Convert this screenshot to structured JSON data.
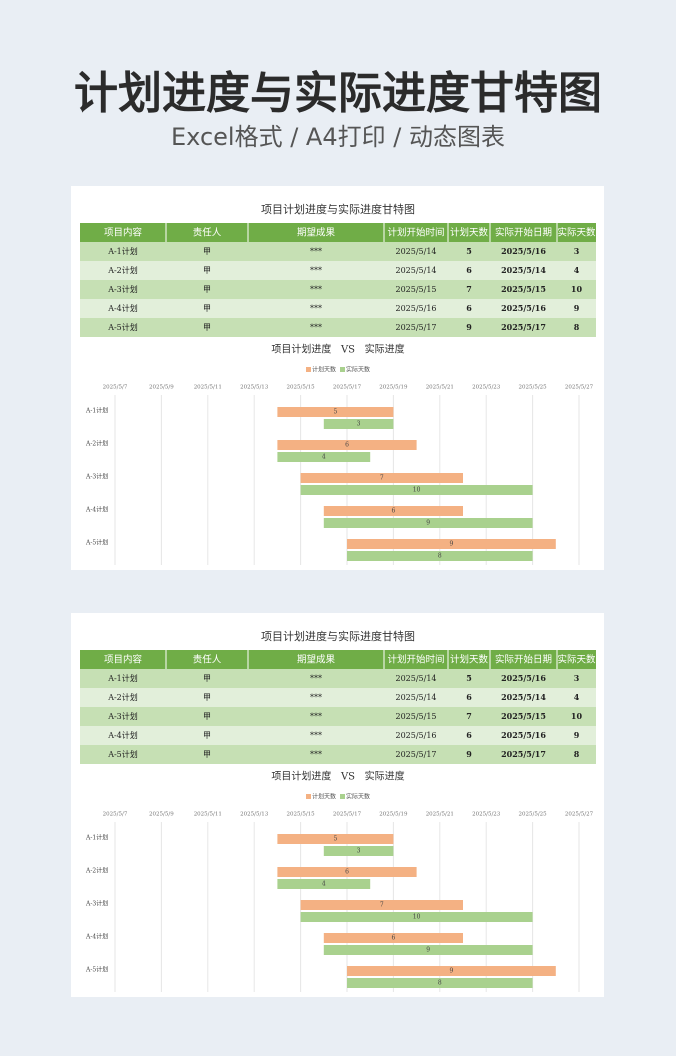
{
  "header": {
    "title": "计划进度与实际进度甘特图",
    "subtitle": "Excel格式 / A4打印 / 动态图表"
  },
  "sheets": [
    {
      "title": "项目计划进度与实际进度甘特图",
      "table": {
        "columns": [
          "项目内容",
          "责任人",
          "期望成果",
          "计划开始时间",
          "计划天数",
          "实际开始日期",
          "实际天数"
        ],
        "rows": [
          [
            "A-1计划",
            "甲",
            "***",
            "2025/5/14",
            5,
            "2025/5/16",
            3
          ],
          [
            "A-2计划",
            "甲",
            "***",
            "2025/5/14",
            6,
            "2025/5/14",
            4
          ],
          [
            "A-3计划",
            "甲",
            "***",
            "2025/5/15",
            7,
            "2025/5/15",
            10
          ],
          [
            "A-4计划",
            "甲",
            "***",
            "2025/5/16",
            6,
            "2025/5/16",
            9
          ],
          [
            "A-5计划",
            "甲",
            "***",
            "2025/5/17",
            9,
            "2025/5/17",
            8
          ]
        ]
      },
      "chart": {
        "type": "gantt",
        "title": "项目计划进度   VS   实际进度",
        "xlim": [
          "2025/5/7",
          "2025/5/27"
        ],
        "xticks": [
          "2025/5/7",
          "2025/5/9",
          "2025/5/11",
          "2025/5/13",
          "2025/5/15",
          "2025/5/17",
          "2025/5/19",
          "2025/5/21",
          "2025/5/23",
          "2025/5/25",
          "2025/5/27"
        ],
        "grid": true,
        "planned_color": "#f4b183",
        "actual_color": "#a9d18e"
      }
    },
    {
      "title": "项目计划进度与实际进度甘特图",
      "table": {
        "columns": [
          "项目内容",
          "责任人",
          "期望成果",
          "计划开始时间",
          "计划天数",
          "实际开始日期",
          "实际天数"
        ],
        "rows": [
          [
            "A-1计划",
            "甲",
            "***",
            "2025/5/14",
            5,
            "2025/5/16",
            3
          ],
          [
            "A-2计划",
            "甲",
            "***",
            "2025/5/14",
            6,
            "2025/5/14",
            4
          ],
          [
            "A-3计划",
            "甲",
            "***",
            "2025/5/15",
            7,
            "2025/5/15",
            10
          ],
          [
            "A-4计划",
            "甲",
            "***",
            "2025/5/16",
            6,
            "2025/5/16",
            9
          ],
          [
            "A-5计划",
            "甲",
            "***",
            "2025/5/17",
            9,
            "2025/5/17",
            8
          ]
        ]
      },
      "chart": {
        "type": "gantt",
        "title": "项目计划进度   VS   实际进度",
        "xlim": [
          "2025/5/7",
          "2025/5/27"
        ],
        "xticks": [
          "2025/5/7",
          "2025/5/9",
          "2025/5/11",
          "2025/5/13",
          "2025/5/15",
          "2025/5/17",
          "2025/5/19",
          "2025/5/21",
          "2025/5/23",
          "2025/5/25",
          "2025/5/27"
        ],
        "grid": true,
        "planned_color": "#f4b183",
        "actual_color": "#a9d18e"
      }
    }
  ]
}
